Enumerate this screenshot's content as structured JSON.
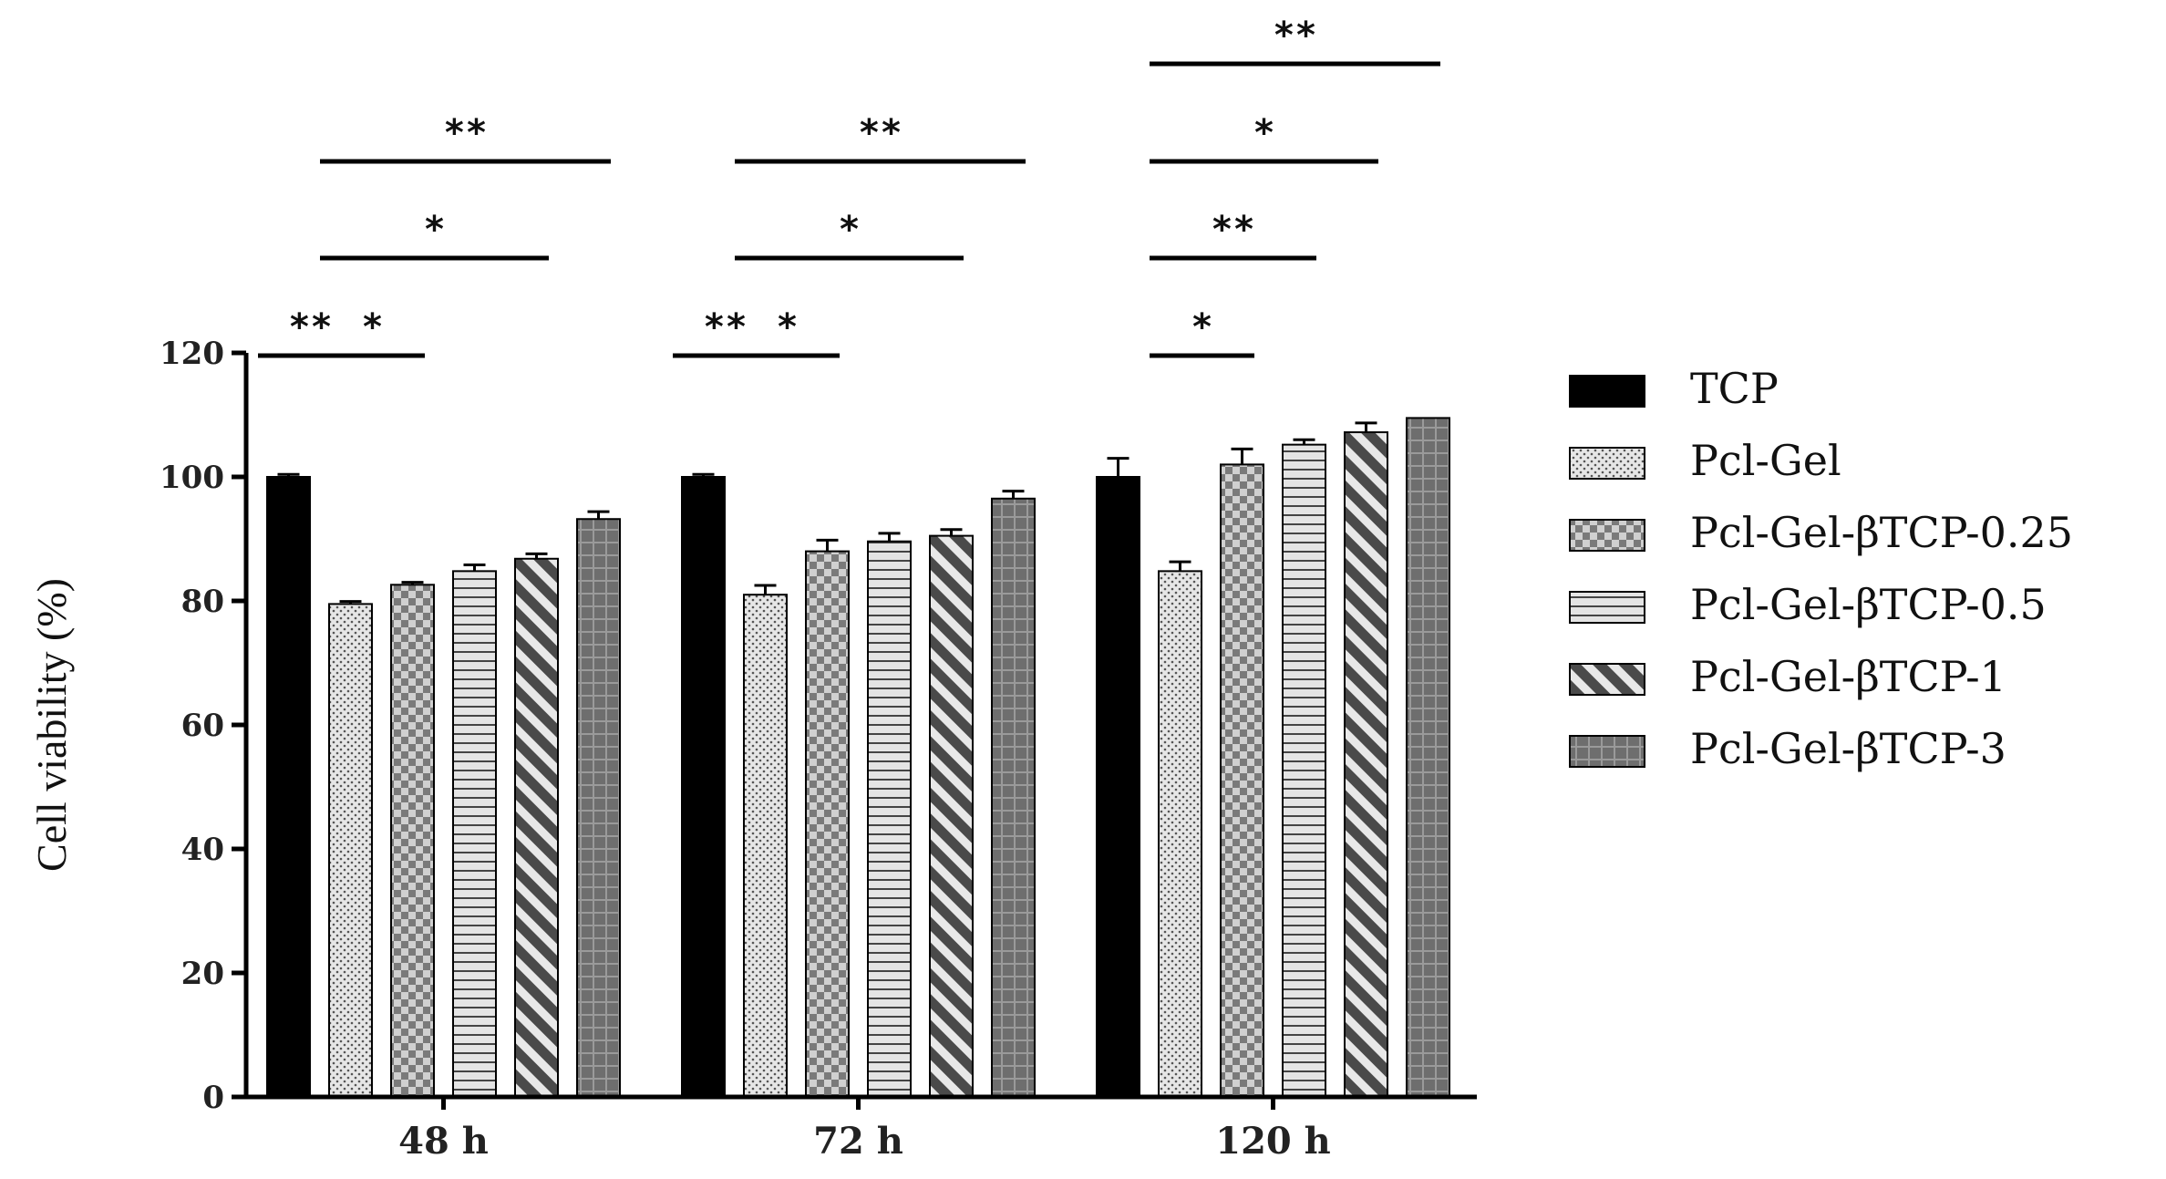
{
  "chart_data": {
    "type": "bar",
    "title": "",
    "xlabel": "",
    "ylabel": "Cell viability (%)",
    "ylim": [
      0,
      120
    ],
    "yticks": [
      0,
      20,
      40,
      60,
      80,
      100,
      120
    ],
    "categories": [
      "48 h",
      "72 h",
      "120 h"
    ],
    "series": [
      {
        "name": "TCP",
        "pattern": "solid",
        "values": [
          100,
          100,
          100
        ],
        "errors": [
          0.4,
          0.4,
          3
        ]
      },
      {
        "name": "Pcl-Gel",
        "pattern": "dots",
        "values": [
          79.5,
          81,
          84.8
        ],
        "errors": [
          0.4,
          1.5,
          1.5
        ]
      },
      {
        "name": "Pcl-Gel-βTCP-0.25",
        "pattern": "checker",
        "values": [
          82.6,
          88,
          102
        ],
        "errors": [
          0.4,
          1.8,
          2.5
        ]
      },
      {
        "name": "Pcl-Gel-βTCP-0.5",
        "pattern": "hlines",
        "values": [
          84.8,
          89.6,
          105.2
        ],
        "errors": [
          1,
          1.3,
          0.8
        ]
      },
      {
        "name": "Pcl-Gel-βTCP-1",
        "pattern": "diagonal",
        "values": [
          86.8,
          90.5,
          107.2
        ],
        "errors": [
          0.8,
          1,
          1.5
        ]
      },
      {
        "name": "Pcl-Gel-βTCP-3",
        "pattern": "grid",
        "values": [
          93.2,
          96.5,
          109.5
        ],
        "errors": [
          1.2,
          1.2,
          0
        ]
      }
    ],
    "significance": [
      {
        "group": 0,
        "from": 0,
        "to": 1,
        "level": 0,
        "label": "**"
      },
      {
        "group": 0,
        "from": 1,
        "to": 2,
        "level": 0,
        "label": "*"
      },
      {
        "group": 0,
        "from": 1,
        "to": 4,
        "level": 1,
        "label": "*"
      },
      {
        "group": 0,
        "from": 1,
        "to": 5,
        "level": 2,
        "label": "**"
      },
      {
        "group": 1,
        "from": 0,
        "to": 1,
        "level": 0,
        "label": "**"
      },
      {
        "group": 1,
        "from": 1,
        "to": 2,
        "level": 0,
        "label": "*"
      },
      {
        "group": 1,
        "from": 1,
        "to": 4,
        "level": 1,
        "label": "*"
      },
      {
        "group": 1,
        "from": 1,
        "to": 5,
        "level": 2,
        "label": "**"
      },
      {
        "group": 2,
        "from": 1,
        "to": 2,
        "level": 0,
        "label": "*"
      },
      {
        "group": 2,
        "from": 1,
        "to": 3,
        "level": 1,
        "label": "**"
      },
      {
        "group": 2,
        "from": 1,
        "to": 4,
        "level": 2,
        "label": "*"
      },
      {
        "group": 2,
        "from": 1,
        "to": 5,
        "level": 3,
        "label": "**"
      }
    ],
    "legend_position": "right"
  }
}
